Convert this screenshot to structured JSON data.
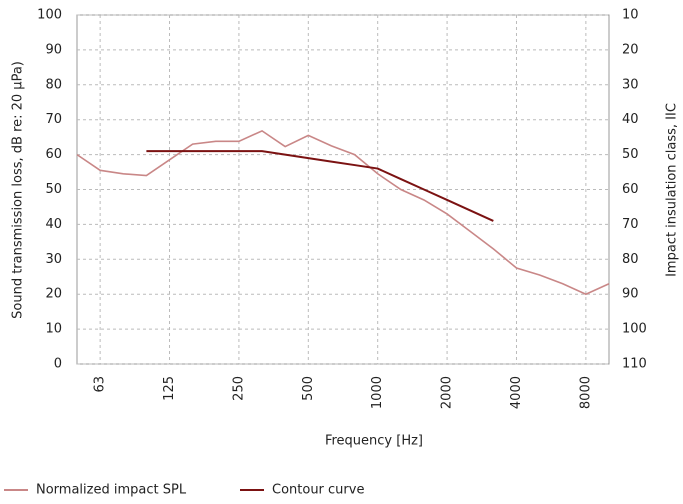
{
  "chart_data": {
    "type": "line",
    "categories": [
      null,
      "63",
      null,
      null,
      "125",
      null,
      null,
      "250",
      null,
      null,
      "500",
      null,
      null,
      "1000",
      null,
      null,
      "2000",
      null,
      null,
      "4000",
      null,
      null,
      "8000",
      null
    ],
    "series": [
      {
        "name": "Normalized impact SPL",
        "color": "#c98787",
        "values": [
          60,
          55.5,
          54.5,
          54,
          58.5,
          63,
          63.8,
          63.8,
          66.8,
          62.3,
          65.5,
          62.5,
          60,
          54.5,
          50,
          47,
          43,
          38,
          33,
          27.5,
          25.5,
          23,
          20,
          23
        ]
      },
      {
        "name": "Contour curve",
        "color": "#7b1212",
        "values": [
          null,
          null,
          null,
          61,
          61,
          61,
          61,
          61,
          61,
          60,
          59,
          58,
          57,
          56,
          53,
          50,
          47,
          44,
          41,
          null,
          null,
          null,
          null,
          null
        ]
      }
    ],
    "xlabel": "Frequency [Hz]",
    "ylabel": "Sound transmission loss, dB re: 20 µPa)",
    "y2label": "Impact insulation class, IIC",
    "ylim": [
      0,
      100
    ],
    "yticks": [
      0,
      10,
      20,
      30,
      40,
      50,
      60,
      70,
      80,
      90,
      100
    ],
    "y2lim": [
      110,
      10
    ],
    "y2ticks": [
      110,
      100,
      90,
      80,
      70,
      60,
      50,
      40,
      30,
      20,
      10
    ],
    "grid": true,
    "legend": "bottom-left"
  }
}
